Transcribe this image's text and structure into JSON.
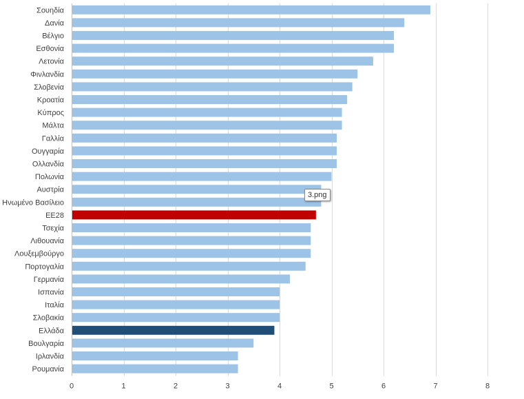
{
  "chart_data": {
    "type": "bar",
    "orientation": "horizontal",
    "categories": [
      "Σουηδία",
      "Δανία",
      "Βέλγιο",
      "Εσθονία",
      "Λετονία",
      "Φινλανδία",
      "Σλοβενία",
      "Κροατία",
      "Κύπρος",
      "Μάλτα",
      "Γαλλία",
      "Ουγγαρία",
      "Ολλανδία",
      "Πολωνία",
      "Αυστρία",
      "Ηνωμένο Βασίλειο",
      "ΕΕ28",
      "Τσεχία",
      "Λιθουανία",
      "Λουξεμβούργο",
      "Πορτογαλία",
      "Γερμανία",
      "Ισπανία",
      "Ιταλία",
      "Σλοβακία",
      "Ελλάδα",
      "Βουλγαρία",
      "Ιρλανδία",
      "Ρουμανία"
    ],
    "values": [
      6.9,
      6.4,
      6.2,
      6.2,
      5.8,
      5.5,
      5.4,
      5.3,
      5.2,
      5.2,
      5.1,
      5.1,
      5.1,
      5.0,
      4.8,
      4.8,
      4.7,
      4.6,
      4.6,
      4.6,
      4.5,
      4.2,
      4.0,
      4.0,
      4.0,
      3.9,
      3.5,
      3.2,
      3.2
    ],
    "highlights": {
      "ΕΕ28": "#c00000",
      "Ελλάδα": "#1f4e79"
    },
    "bar_color": "#9dc3e6",
    "xlim": [
      0,
      8
    ],
    "xticks": [
      "0",
      "1",
      "2",
      "3",
      "4",
      "5",
      "6",
      "7",
      "8"
    ],
    "grid": true,
    "title": "",
    "xlabel": "",
    "ylabel": ""
  },
  "tooltip": {
    "text": "3.png"
  }
}
